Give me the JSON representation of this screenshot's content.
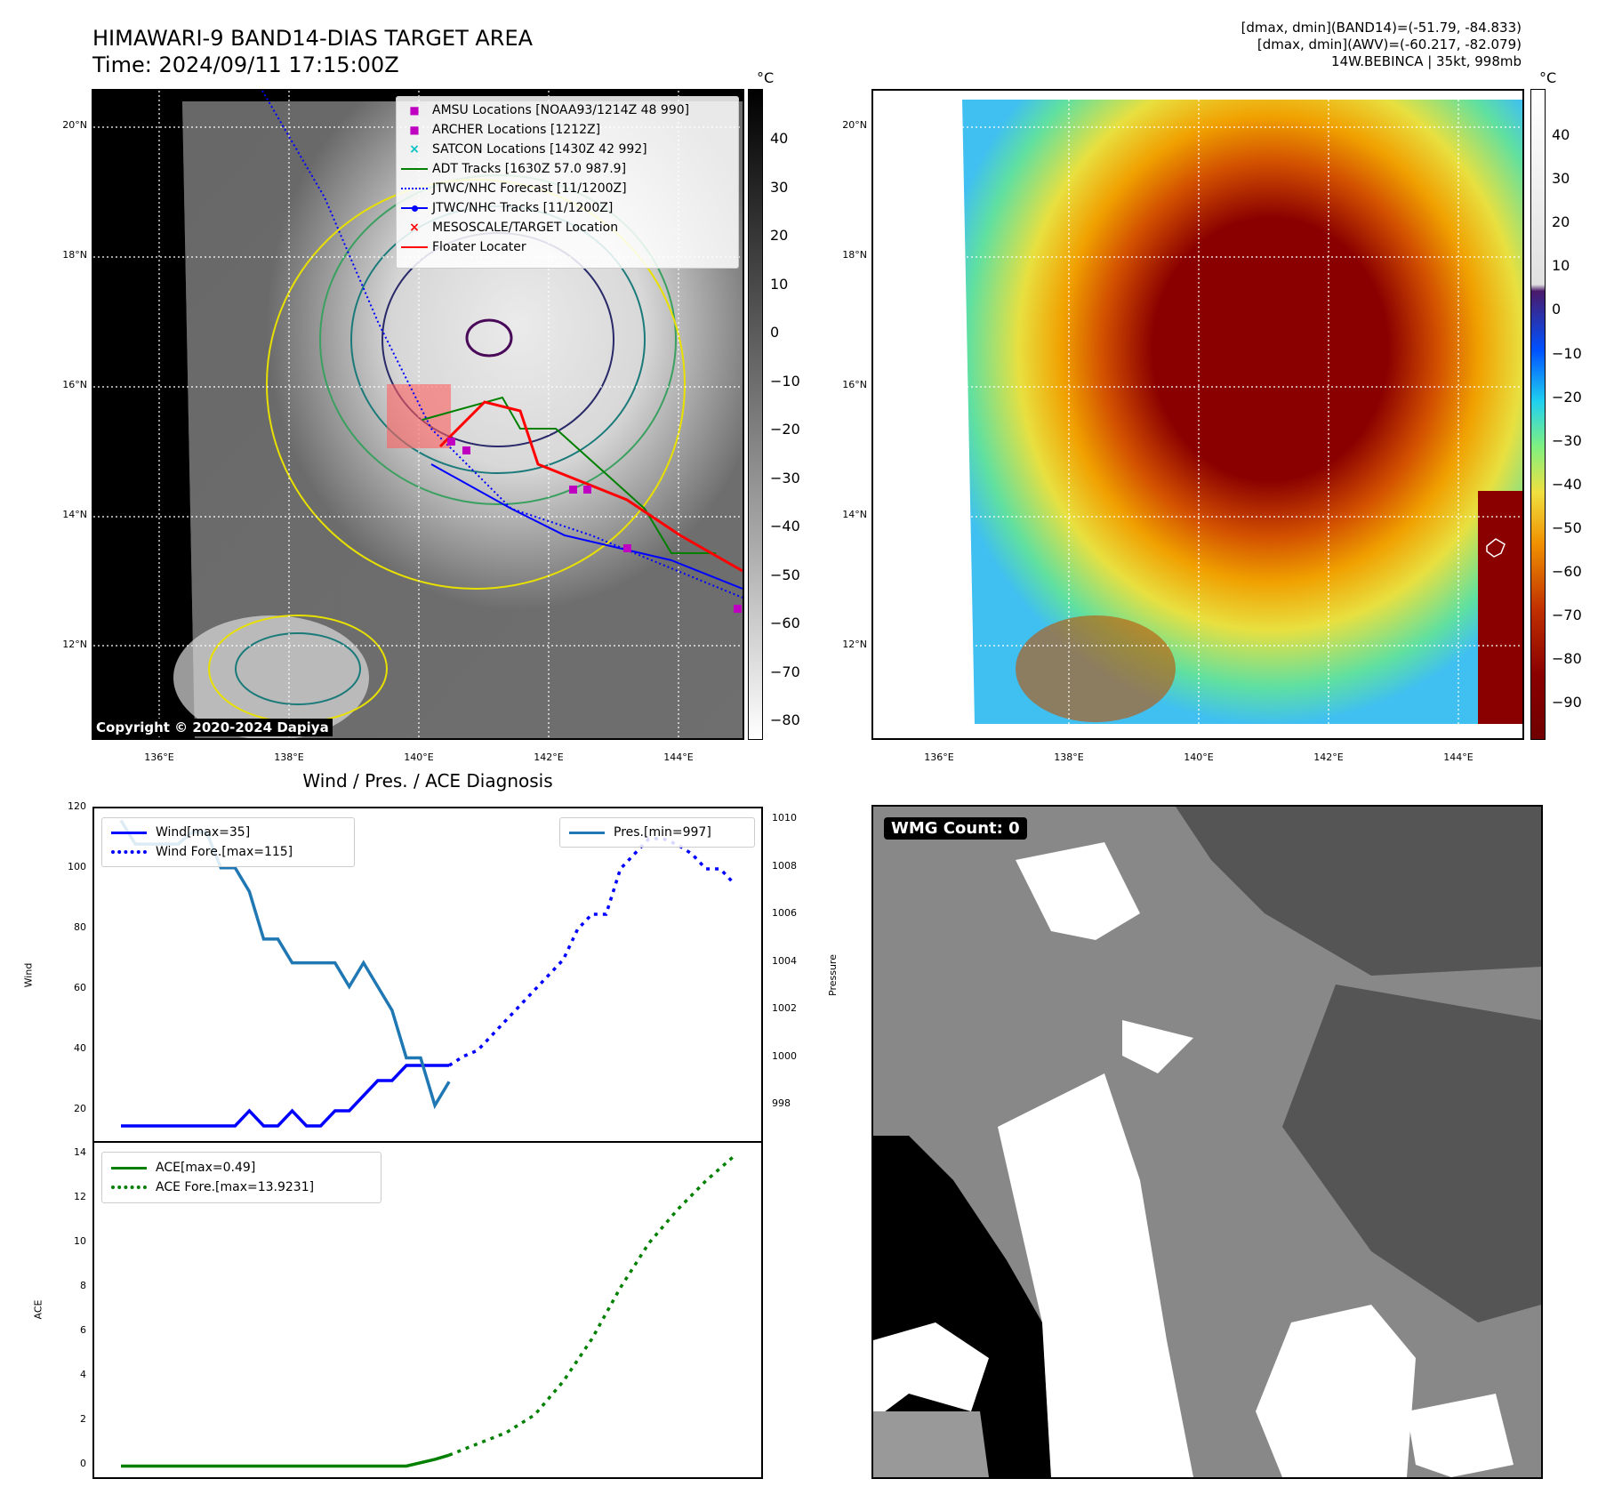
{
  "header": {
    "title_line1": "HIMAWARI-9 BAND14-DIAS TARGET AREA",
    "title_line2": "Time: 2024/09/11 17:15:00Z",
    "stats_line1": "[dmax, dmin](BAND14)=(-51.79, -84.833)",
    "stats_line2": "[dmax, dmin](AWV)=(-60.217, -82.079)",
    "stats_line3": "14W.BEBINCA | 35kt, 998mb"
  },
  "map_axes": {
    "lat_labels": [
      "20°N",
      "18°N",
      "16°N",
      "14°N",
      "12°N"
    ],
    "lon_labels": [
      "136°E",
      "138°E",
      "140°E",
      "142°E",
      "144°E"
    ],
    "unit": "°C"
  },
  "colorbar_left": {
    "ticks": [
      "40",
      "30",
      "20",
      "10",
      "0",
      "−10",
      "−20",
      "−30",
      "−40",
      "−50",
      "−60",
      "−70",
      "−80"
    ]
  },
  "colorbar_right": {
    "ticks": [
      "40",
      "30",
      "20",
      "10",
      "0",
      "−10",
      "−20",
      "−30",
      "−40",
      "−50",
      "−60",
      "−70",
      "−80",
      "−90"
    ]
  },
  "legend": {
    "items": [
      {
        "label": "AMSU Locations [NOAA93/1214Z 48 990]",
        "color": "#c000c0",
        "marker": "■"
      },
      {
        "label": "ARCHER Locations [1212Z]",
        "color": "#c000c0",
        "marker": "■"
      },
      {
        "label": "SATCON Locations [1430Z 42 992]",
        "color": "#00c0c0",
        "marker": "×"
      },
      {
        "label": "ADT Tracks [1630Z 57.0 987.9]",
        "color": "#008000",
        "marker": "line"
      },
      {
        "label": "JTWC/NHC Forecast [11/1200Z]",
        "color": "#0000ff",
        "marker": "dotted"
      },
      {
        "label": "JTWC/NHC Tracks [11/1200Z]",
        "color": "#0000ff",
        "marker": "linedot"
      },
      {
        "label": "MESOSCALE/TARGET Location",
        "color": "#ff0000",
        "marker": "×"
      },
      {
        "label": "Floater Locater",
        "color": "#ff0000",
        "marker": "line"
      }
    ]
  },
  "copyright": "Copyright © 2020-2024 Dapiya",
  "wmg_label": "WMG Count: 0",
  "chart_data": [
    {
      "type": "line",
      "title": "Wind / Pres. / ACE Diagnosis",
      "ylabel": "Wind",
      "ylabel_right": "Pressure",
      "ylim": [
        10,
        120
      ],
      "ylim_right": [
        996.5,
        1010.5
      ],
      "yticks": [
        20,
        40,
        60,
        80,
        100,
        120
      ],
      "yticks_right": [
        998,
        1000,
        1002,
        1004,
        1006,
        1008,
        1010
      ],
      "series": [
        {
          "name": "Wind[max=35]",
          "color": "#0000ff",
          "style": "solid",
          "x": [
            0,
            1,
            2,
            3,
            4,
            5,
            6,
            7,
            8,
            9,
            10,
            11,
            12,
            13,
            14,
            15,
            16,
            17,
            18,
            19,
            20,
            21,
            22,
            23
          ],
          "values": [
            15,
            15,
            15,
            15,
            15,
            15,
            15,
            15,
            15,
            20,
            15,
            15,
            20,
            15,
            15,
            20,
            20,
            25,
            30,
            30,
            35,
            35,
            35,
            35
          ]
        },
        {
          "name": "Wind Fore.[max=115]",
          "color": "#0000ff",
          "style": "dotted",
          "x": [
            23,
            24,
            25,
            26,
            27,
            28,
            29,
            30,
            31,
            32,
            33,
            34,
            35,
            36,
            37,
            38,
            39,
            40,
            41,
            42,
            43
          ],
          "values": [
            35,
            38,
            40,
            45,
            50,
            55,
            60,
            65,
            70,
            80,
            85,
            85,
            100,
            105,
            110,
            110,
            108,
            105,
            100,
            100,
            95
          ]
        },
        {
          "name": "Pres.[min=997]",
          "color": "#1f77b4",
          "style": "solid",
          "axis": "right",
          "x": [
            0,
            1,
            2,
            3,
            4,
            5,
            6,
            7,
            8,
            9,
            10,
            11,
            12,
            13,
            14,
            15,
            16,
            17,
            18,
            19,
            20,
            21,
            22,
            23
          ],
          "values": [
            1010,
            1009,
            1009,
            1009,
            1009,
            1009.5,
            1009.5,
            1008,
            1008,
            1007,
            1005,
            1005,
            1004,
            1004,
            1004,
            1004,
            1003,
            1004,
            1003,
            1002,
            1000,
            1000,
            998,
            999
          ]
        }
      ],
      "legend_left": [
        "Wind[max=35]",
        "Wind Fore.[max=115]"
      ],
      "legend_right": [
        "Pres.[min=997]"
      ]
    },
    {
      "type": "line",
      "ylabel": "ACE",
      "ylim": [
        -0.5,
        14.5
      ],
      "yticks": [
        0,
        2,
        4,
        6,
        8,
        10,
        12,
        14
      ],
      "series": [
        {
          "name": "ACE[max=0.49]",
          "color": "#008000",
          "style": "solid",
          "x": [
            0,
            5,
            10,
            15,
            18,
            20,
            22,
            23
          ],
          "values": [
            0,
            0,
            0,
            0,
            0,
            0,
            0.3,
            0.49
          ]
        },
        {
          "name": "ACE Fore.[max=13.9231]",
          "color": "#008000",
          "style": "dotted",
          "x": [
            23,
            25,
            27,
            29,
            31,
            33,
            35,
            37,
            39,
            41,
            43
          ],
          "values": [
            0.49,
            1.0,
            1.5,
            2.3,
            3.8,
            5.7,
            8.0,
            10.0,
            11.5,
            12.8,
            13.9231
          ]
        }
      ],
      "legend": [
        "ACE[max=0.49]",
        "ACE Fore.[max=13.9231]"
      ]
    }
  ]
}
